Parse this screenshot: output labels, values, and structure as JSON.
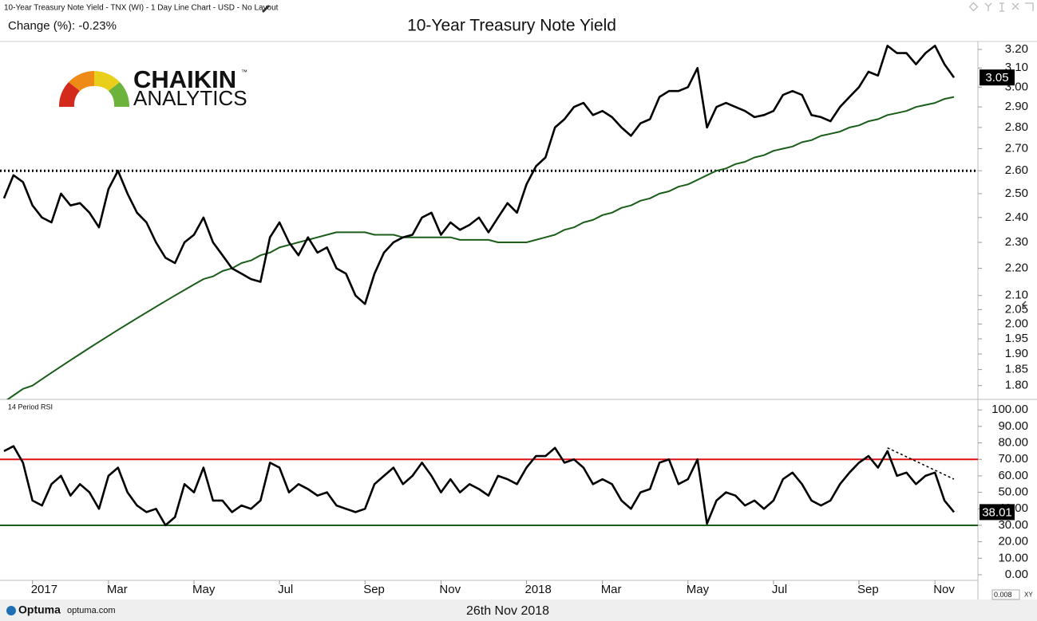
{
  "header": {
    "caption": "10-Year Treasury Note Yield - TNX (WI) - 1 Day Line Chart - USD - No Layout",
    "change": "Change (%): -0.23%",
    "scale_box": "0.008"
  },
  "logo": {
    "name": "CHAIKIN",
    "mark": "™",
    "sub": "ANALYTICS"
  },
  "footer": {
    "brand": "Optuma",
    "site": "optuma.com",
    "date": "26th Nov 2018"
  },
  "chart_data": [
    {
      "type": "line",
      "title": "10-Year Treasury Note Yield",
      "log_scale": true,
      "ylim": [
        1.758,
        3.244
      ],
      "yticks": [
        {
          "value": 1.8,
          "label": "1.80"
        },
        {
          "value": 1.85,
          "label": "1.85"
        },
        {
          "value": 1.9,
          "label": "1.90"
        },
        {
          "value": 1.95,
          "label": "1.95"
        },
        {
          "value": 2.0,
          "label": "2.00"
        },
        {
          "value": 2.05,
          "label": "2.05"
        },
        {
          "value": 2.1,
          "label": "2.10"
        },
        {
          "value": 2.2,
          "label": "2.20"
        },
        {
          "value": 2.3,
          "label": "2.30"
        },
        {
          "value": 2.4,
          "label": "2.40"
        },
        {
          "value": 2.5,
          "label": "2.50"
        },
        {
          "value": 2.6,
          "label": "2.60"
        },
        {
          "value": 2.7,
          "label": "2.70"
        },
        {
          "value": 2.8,
          "label": "2.80"
        },
        {
          "value": 2.9,
          "label": "2.90"
        },
        {
          "value": 3.0,
          "label": "3.00"
        },
        {
          "value": 3.1,
          "label": "3.10"
        },
        {
          "value": 3.2,
          "label": "3.20"
        }
      ],
      "series": [
        {
          "color": "#000000",
          "values": [
            2.48,
            2.58,
            2.55,
            2.45,
            2.4,
            2.38,
            2.5,
            2.45,
            2.46,
            2.42,
            2.36,
            2.52,
            2.6,
            2.5,
            2.42,
            2.38,
            2.3,
            2.24,
            2.22,
            2.3,
            2.33,
            2.4,
            2.3,
            2.25,
            2.2,
            2.18,
            2.16,
            2.15,
            2.32,
            2.38,
            2.3,
            2.25,
            2.32,
            2.26,
            2.28,
            2.2,
            2.18,
            2.1,
            2.07,
            2.18,
            2.26,
            2.3,
            2.32,
            2.33,
            2.4,
            2.42,
            2.33,
            2.38,
            2.35,
            2.37,
            2.4,
            2.34,
            2.4,
            2.46,
            2.42,
            2.54,
            2.62,
            2.66,
            2.8,
            2.84,
            2.9,
            2.92,
            2.86,
            2.88,
            2.85,
            2.8,
            2.76,
            2.82,
            2.84,
            2.95,
            2.98,
            2.98,
            3.0,
            3.1,
            2.8,
            2.9,
            2.92,
            2.9,
            2.88,
            2.85,
            2.86,
            2.88,
            2.96,
            2.98,
            2.96,
            2.86,
            2.85,
            2.83,
            2.9,
            2.95,
            3.0,
            3.08,
            3.06,
            3.22,
            3.18,
            3.18,
            3.12,
            3.18,
            3.22,
            3.12,
            3.05
          ]
        },
        {
          "color": "#1a5e1a",
          "values": [
            1.75,
            1.77,
            1.79,
            1.8,
            1.82,
            1.84,
            1.86,
            1.88,
            1.9,
            1.92,
            1.94,
            1.96,
            1.98,
            2.0,
            2.02,
            2.04,
            2.06,
            2.08,
            2.1,
            2.12,
            2.14,
            2.16,
            2.17,
            2.19,
            2.2,
            2.22,
            2.23,
            2.25,
            2.26,
            2.28,
            2.29,
            2.3,
            2.31,
            2.32,
            2.33,
            2.34,
            2.34,
            2.34,
            2.34,
            2.33,
            2.33,
            2.33,
            2.32,
            2.32,
            2.32,
            2.32,
            2.32,
            2.32,
            2.31,
            2.31,
            2.31,
            2.31,
            2.3,
            2.3,
            2.3,
            2.3,
            2.31,
            2.32,
            2.33,
            2.35,
            2.36,
            2.38,
            2.39,
            2.41,
            2.42,
            2.44,
            2.45,
            2.47,
            2.48,
            2.5,
            2.51,
            2.53,
            2.54,
            2.56,
            2.58,
            2.6,
            2.61,
            2.63,
            2.64,
            2.66,
            2.67,
            2.69,
            2.7,
            2.71,
            2.73,
            2.74,
            2.76,
            2.77,
            2.78,
            2.8,
            2.81,
            2.83,
            2.84,
            2.86,
            2.87,
            2.88,
            2.9,
            2.91,
            2.92,
            2.94,
            2.95
          ]
        }
      ],
      "reference_line": {
        "value": 2.6,
        "color": "#000000"
      }
    },
    {
      "type": "line",
      "title": "14 Period RSI",
      "categories": [
        null,
        null,
        null,
        "2017",
        null,
        null,
        null,
        null,
        null,
        null,
        null,
        "Mar",
        null,
        null,
        null,
        null,
        null,
        null,
        null,
        null,
        "May",
        null,
        null,
        null,
        null,
        null,
        null,
        null,
        null,
        "Jul",
        null,
        null,
        null,
        null,
        null,
        null,
        null,
        null,
        "Sep",
        null,
        null,
        null,
        null,
        null,
        null,
        null,
        "Nov",
        null,
        null,
        null,
        null,
        null,
        null,
        null,
        null,
        "2018",
        null,
        null,
        null,
        null,
        null,
        null,
        null,
        "Mar",
        null,
        null,
        null,
        null,
        null,
        null,
        null,
        null,
        "May",
        null,
        null,
        null,
        null,
        null,
        null,
        null,
        null,
        "Jul",
        null,
        null,
        null,
        null,
        null,
        null,
        null,
        null,
        "Sep",
        null,
        null,
        null,
        null,
        null,
        null,
        null,
        "Nov",
        null,
        null
      ],
      "ylim": [
        -3.4,
        106.4
      ],
      "yticks": [
        {
          "value": 0,
          "label": "0.00"
        },
        {
          "value": 10,
          "label": "10.00"
        },
        {
          "value": 20,
          "label": "20.00"
        },
        {
          "value": 30,
          "label": "30.00"
        },
        {
          "value": 40,
          "label": "40.00"
        },
        {
          "value": 50,
          "label": "50.00"
        },
        {
          "value": 60,
          "label": "60.00"
        },
        {
          "value": 70,
          "label": "70.00"
        },
        {
          "value": 80,
          "label": "80.00"
        },
        {
          "value": 90,
          "label": "90.00"
        },
        {
          "value": 100,
          "label": "100.00"
        }
      ],
      "series": [
        {
          "color": "#000000",
          "values": [
            75,
            78,
            68,
            45,
            42,
            55,
            60,
            48,
            55,
            50,
            40,
            60,
            65,
            50,
            42,
            38,
            40,
            30,
            35,
            55,
            50,
            65,
            45,
            45,
            38,
            42,
            40,
            45,
            68,
            65,
            50,
            55,
            52,
            48,
            50,
            42,
            40,
            38,
            40,
            55,
            60,
            65,
            55,
            60,
            68,
            60,
            50,
            58,
            50,
            55,
            52,
            48,
            60,
            58,
            55,
            65,
            72,
            72,
            77,
            68,
            70,
            65,
            55,
            58,
            55,
            45,
            40,
            50,
            52,
            68,
            70,
            55,
            58,
            70,
            31,
            45,
            50,
            48,
            42,
            45,
            40,
            45,
            58,
            62,
            55,
            45,
            42,
            45,
            55,
            62,
            68,
            72,
            65,
            75,
            60,
            62,
            55,
            60,
            62,
            45,
            38.01
          ]
        }
      ],
      "levels": [
        {
          "value": 70,
          "color": "#e01010"
        },
        {
          "value": 30,
          "color": "#1a5e1a"
        }
      ],
      "trend_line": {
        "x": [
          93,
          100
        ],
        "values": [
          77,
          58
        ],
        "color": "#000000"
      }
    }
  ]
}
